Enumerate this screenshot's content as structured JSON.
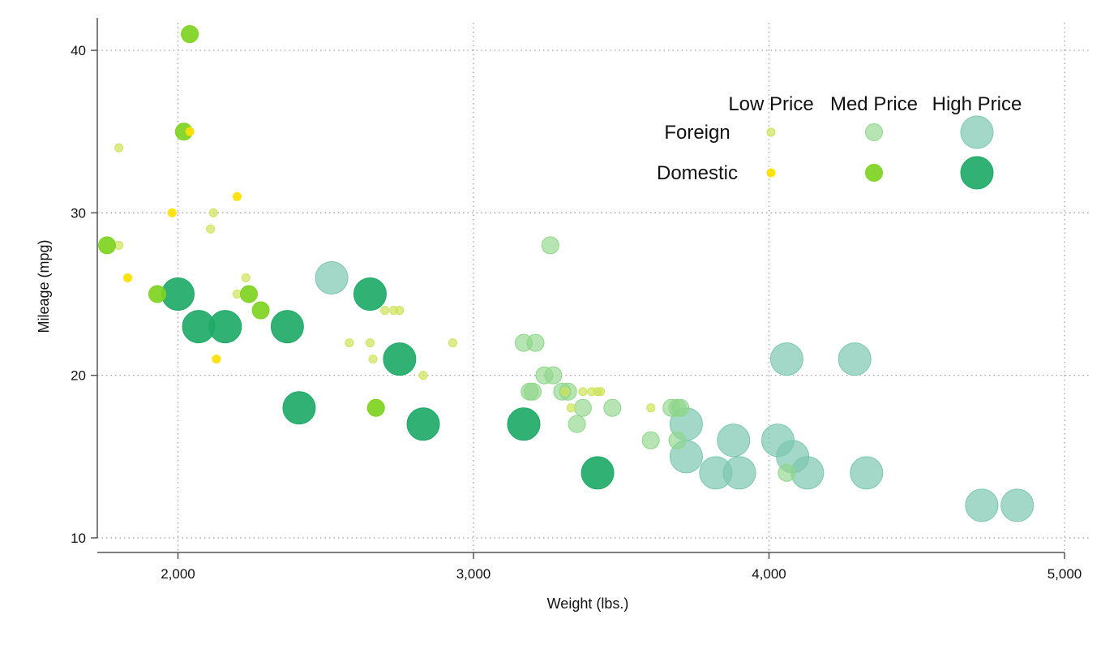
{
  "chart_data": {
    "type": "scatter",
    "subtype": "bubble",
    "title": "",
    "xlabel": "Weight (lbs.)",
    "ylabel": "Mileage (mpg)",
    "xlim": [
      1700,
      5000
    ],
    "ylim": [
      10,
      41
    ],
    "x_ticks": [
      2000,
      3000,
      4000,
      5000
    ],
    "x_tick_labels": [
      "2,000",
      "3,000",
      "4,000",
      "5,000"
    ],
    "y_ticks": [
      10,
      20,
      30,
      40
    ],
    "y_tick_labels": [
      "10",
      "20",
      "30",
      "40"
    ],
    "grid": true,
    "grid_style": "dotted",
    "legend": {
      "placement": "top-right",
      "column_headers": [
        "Low Price",
        "Med Price",
        "High Price"
      ],
      "row_labels": [
        "Foreign",
        "Domestic"
      ]
    },
    "colors": {
      "foreign_low": "#cfe35a",
      "foreign_med": "#8fd68a",
      "foreign_high": "#7cc8b0",
      "domestic_low": "#ffe000",
      "domestic_med": "#7ed321",
      "domestic_high": "#1faa68",
      "axis": "#555555",
      "grid": "#9a9a9a"
    },
    "series": [
      {
        "name": "Foreign Low Price",
        "origin": "Foreign",
        "price": "Low",
        "points": [
          [
            1800,
            34
          ],
          [
            1800,
            28
          ],
          [
            2120,
            30
          ],
          [
            2110,
            29
          ],
          [
            2230,
            26
          ],
          [
            2200,
            25
          ],
          [
            2580,
            22
          ],
          [
            2650,
            22
          ],
          [
            2660,
            21
          ],
          [
            2700,
            24
          ],
          [
            2730,
            24
          ],
          [
            2750,
            24
          ],
          [
            2830,
            20
          ],
          [
            2930,
            22
          ],
          [
            3310,
            19
          ],
          [
            3330,
            18
          ],
          [
            3370,
            19
          ],
          [
            3400,
            19
          ],
          [
            3420,
            19
          ],
          [
            3430,
            19
          ],
          [
            3600,
            18
          ]
        ]
      },
      {
        "name": "Foreign Med Price",
        "origin": "Foreign",
        "price": "Med",
        "points": [
          [
            3170,
            22
          ],
          [
            3210,
            22
          ],
          [
            3190,
            19
          ],
          [
            3200,
            19
          ],
          [
            3240,
            20
          ],
          [
            3270,
            20
          ],
          [
            3260,
            28
          ],
          [
            3300,
            19
          ],
          [
            3320,
            19
          ],
          [
            3350,
            17
          ],
          [
            3370,
            18
          ],
          [
            3470,
            18
          ],
          [
            3600,
            16
          ],
          [
            3670,
            18
          ],
          [
            3690,
            18
          ],
          [
            3700,
            18
          ],
          [
            3690,
            16
          ],
          [
            4060,
            14
          ]
        ]
      },
      {
        "name": "Foreign High Price",
        "origin": "Foreign",
        "price": "High",
        "points": [
          [
            2520,
            26
          ],
          [
            3720,
            17
          ],
          [
            3720,
            15
          ],
          [
            3820,
            14
          ],
          [
            3880,
            16
          ],
          [
            3900,
            14
          ],
          [
            4030,
            16
          ],
          [
            4060,
            21
          ],
          [
            4080,
            15
          ],
          [
            4130,
            14
          ],
          [
            4290,
            21
          ],
          [
            4330,
            14
          ],
          [
            4720,
            12
          ],
          [
            4840,
            12
          ]
        ]
      },
      {
        "name": "Domestic Low Price",
        "origin": "Domestic",
        "price": "Low",
        "points": [
          [
            1830,
            26
          ],
          [
            1980,
            30
          ],
          [
            2040,
            35
          ],
          [
            2130,
            21
          ],
          [
            2200,
            31
          ]
        ]
      },
      {
        "name": "Domestic Med Price",
        "origin": "Domestic",
        "price": "Med",
        "points": [
          [
            1760,
            28
          ],
          [
            1930,
            25
          ],
          [
            2020,
            35
          ],
          [
            2040,
            41
          ],
          [
            2240,
            25
          ],
          [
            2280,
            24
          ],
          [
            2670,
            18
          ]
        ]
      },
      {
        "name": "Domestic High Price",
        "origin": "Domestic",
        "price": "High",
        "points": [
          [
            2000,
            25
          ],
          [
            2070,
            23
          ],
          [
            2160,
            23
          ],
          [
            2370,
            23
          ],
          [
            2410,
            18
          ],
          [
            2650,
            25
          ],
          [
            2750,
            21
          ],
          [
            2830,
            17
          ],
          [
            3170,
            17
          ],
          [
            3420,
            14
          ]
        ]
      }
    ]
  }
}
